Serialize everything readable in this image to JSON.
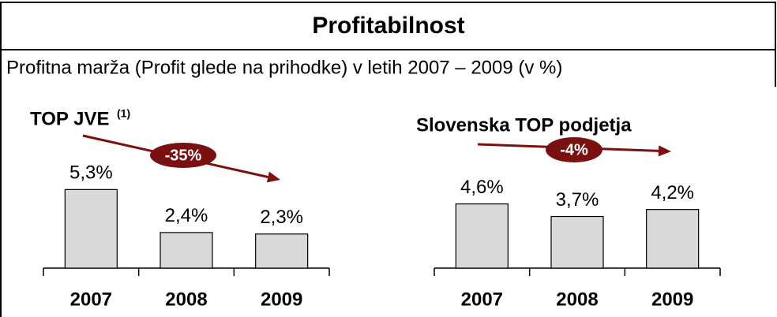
{
  "header": {
    "title": "Profitabilnost",
    "subtitle": "Profitna marža (Profit glede na prihodke) v letih 2007 – 2009 (v %)"
  },
  "chart_data": [
    {
      "type": "bar",
      "title": "TOP JVE",
      "title_note": "(1)",
      "categories": [
        "2007",
        "2008",
        "2009"
      ],
      "values": [
        5.3,
        2.4,
        2.3
      ],
      "value_labels": [
        "5,3%",
        "2,4%",
        "2,3%"
      ],
      "color": "#d9d9d9",
      "annotation": "-35%",
      "annotation_color": "#7b1010"
    },
    {
      "type": "bar",
      "title": "Slovenska TOP podjetja",
      "categories": [
        "2007",
        "2008",
        "2009"
      ],
      "values": [
        4.6,
        3.7,
        4.2
      ],
      "value_labels": [
        "4,6%",
        "3,7%",
        "4,2%"
      ],
      "color": "#d9d9d9",
      "annotation": "-4%",
      "annotation_color": "#7b1010"
    }
  ]
}
